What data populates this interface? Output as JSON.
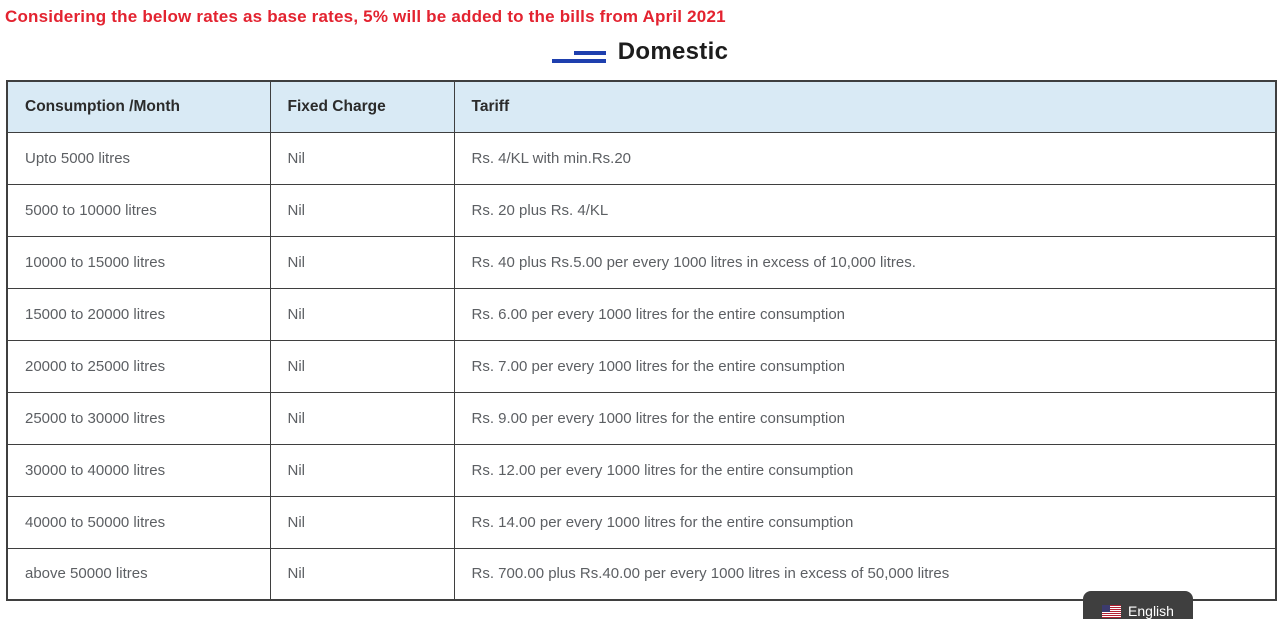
{
  "notice": "Considering the below rates as base rates, 5% will be added to the bills from April 2021",
  "section_title": "Domestic",
  "table": {
    "headers": [
      "Consumption /Month",
      "Fixed Charge",
      "Tariff"
    ],
    "rows": [
      [
        "Upto 5000 litres",
        "Nil",
        "Rs. 4/KL with min.Rs.20"
      ],
      [
        "5000 to 10000 litres",
        "Nil",
        "Rs. 20 plus Rs. 4/KL"
      ],
      [
        "10000 to 15000 litres",
        "Nil",
        "Rs. 40 plus Rs.5.00 per every 1000 litres in excess of 10,000 litres."
      ],
      [
        "15000 to 20000 litres",
        "Nil",
        "Rs. 6.00 per every 1000 litres for the entire consumption"
      ],
      [
        "20000 to 25000 litres",
        "Nil",
        "Rs. 7.00 per every 1000 litres for the entire consumption"
      ],
      [
        "25000 to 30000 litres",
        "Nil",
        "Rs. 9.00 per every 1000 litres for the entire consumption"
      ],
      [
        "30000 to 40000 litres",
        "Nil",
        "Rs. 12.00 per every 1000 litres for the entire consumption"
      ],
      [
        "40000 to 50000 litres",
        "Nil",
        "Rs. 14.00 per every 1000 litres for the entire consumption"
      ],
      [
        "above 50000 litres",
        "Nil",
        "Rs. 700.00 plus Rs.40.00 per every 1000 litres in excess of 50,000 litres"
      ]
    ]
  },
  "language_selector": {
    "label": "English",
    "flag_icon": "us-flag-icon"
  },
  "colors": {
    "notice_red": "#e32330",
    "heading_icon_blue": "#1e3fae",
    "table_header_bg": "#d9eaf5",
    "table_border": "#3f3f3f",
    "cell_text": "#5c5f63",
    "header_text": "#2b2b2b",
    "lang_button_bg": "#3f3f3f"
  }
}
